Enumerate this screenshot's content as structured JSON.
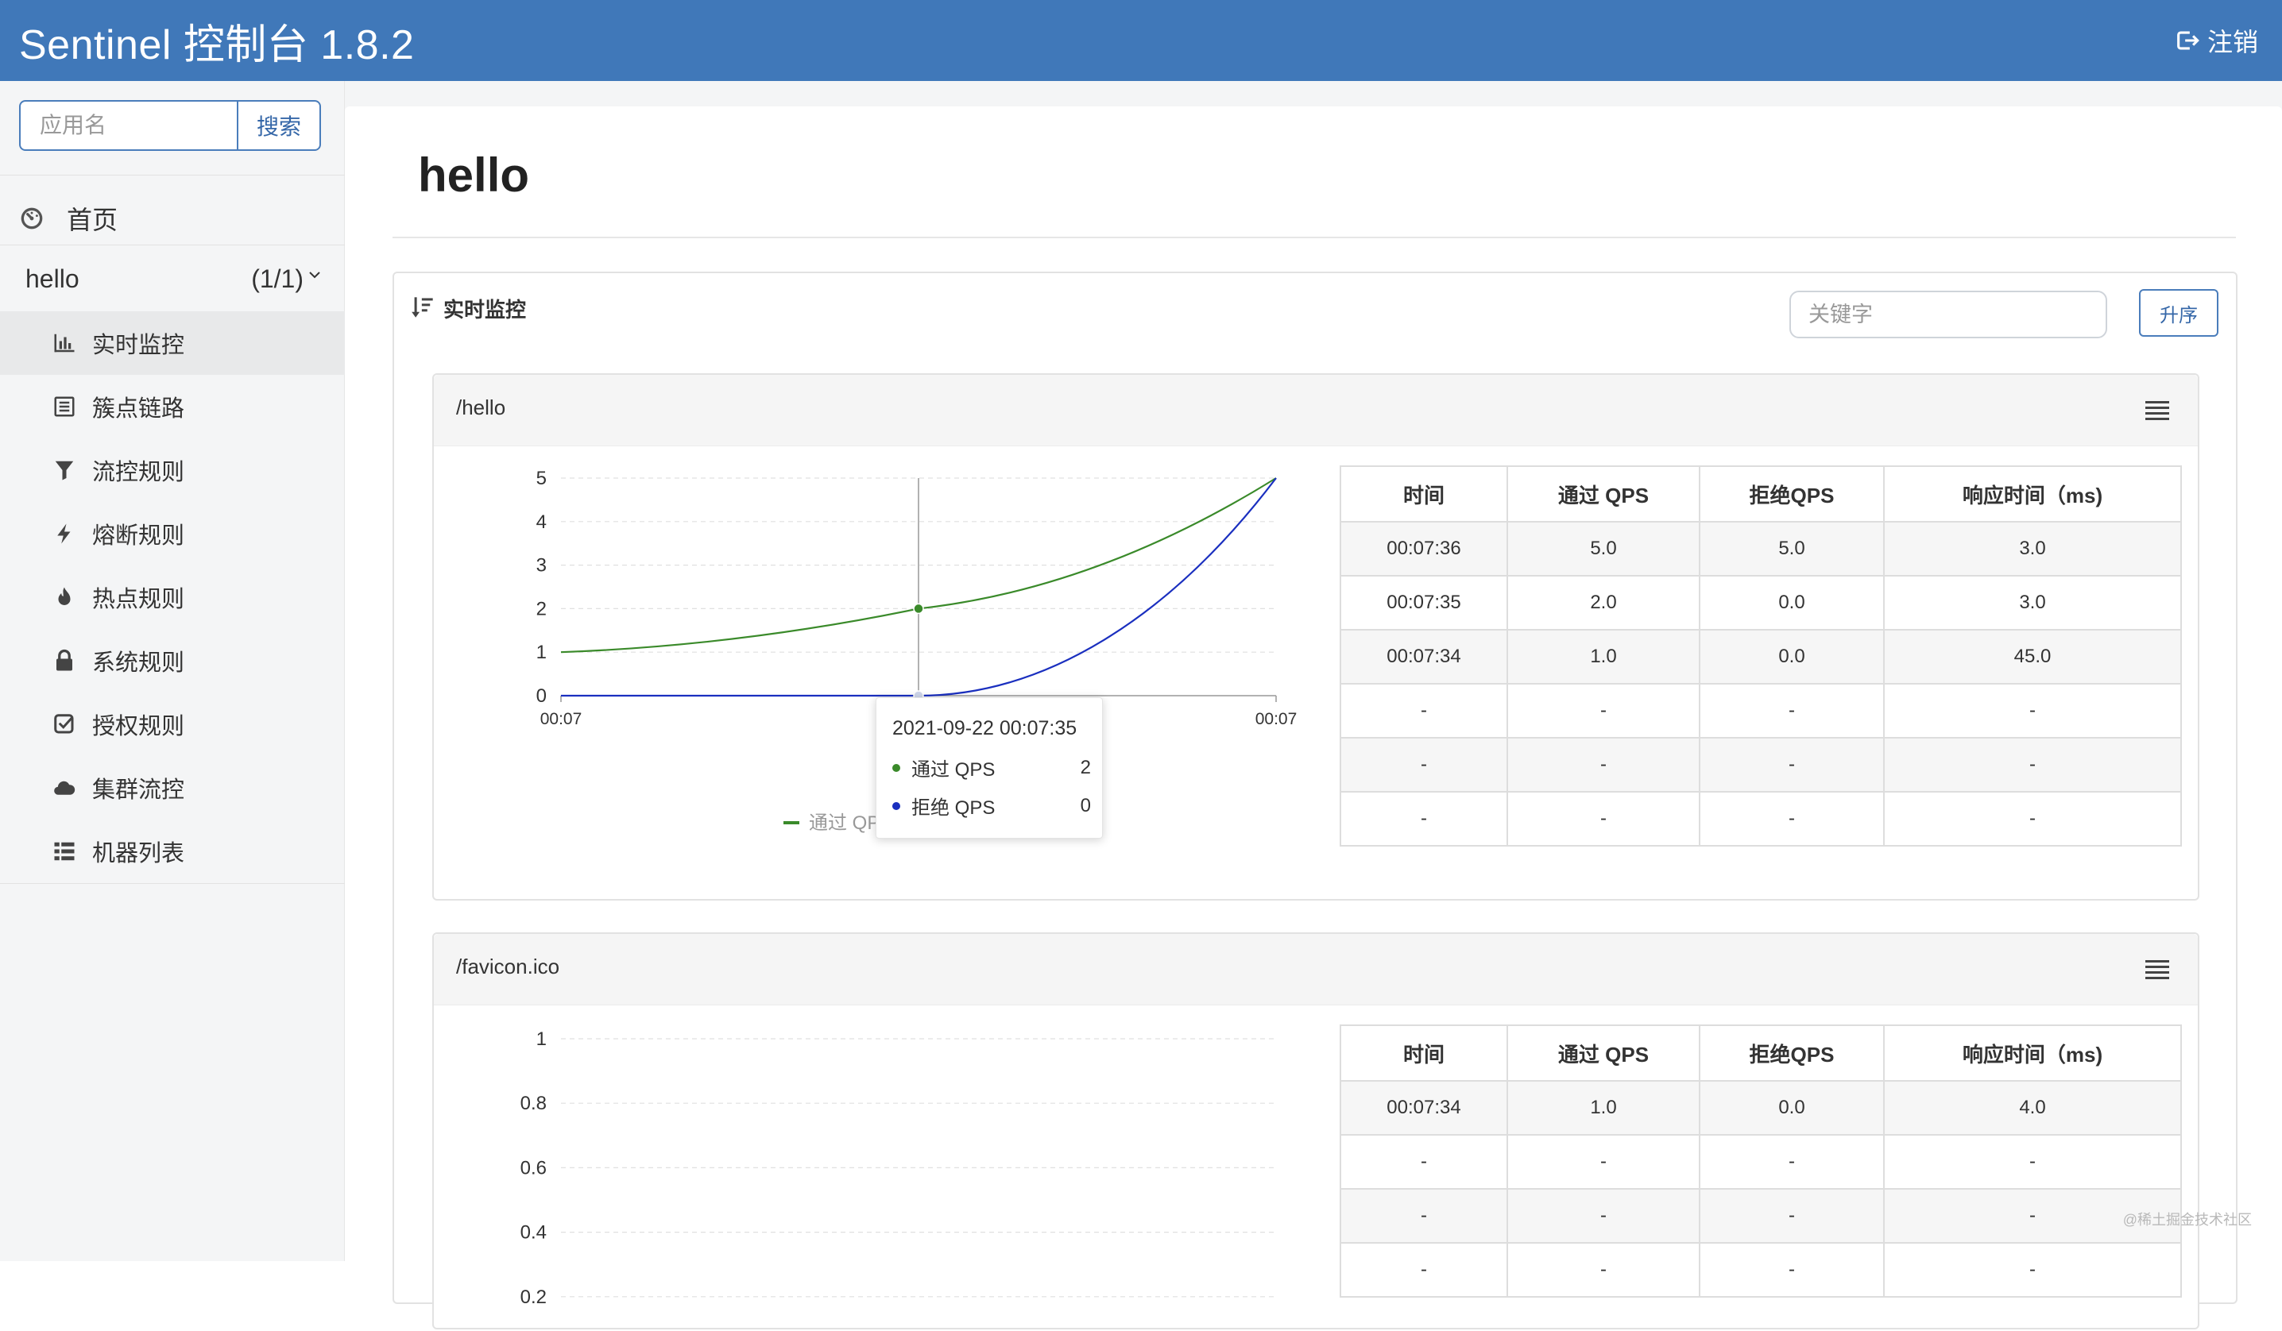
{
  "header": {
    "title": "Sentinel 控制台 1.8.2",
    "logout_label": "注销"
  },
  "sidebar": {
    "search_placeholder": "应用名",
    "search_button": "搜索",
    "home_label": "首页",
    "app": {
      "name": "hello",
      "count": "(1/1)"
    },
    "items": [
      {
        "label": "实时监控",
        "icon": "bar-chart-icon"
      },
      {
        "label": "簇点链路",
        "icon": "list-alt-icon"
      },
      {
        "label": "流控规则",
        "icon": "filter-icon"
      },
      {
        "label": "熔断规则",
        "icon": "flash-icon"
      },
      {
        "label": "热点规则",
        "icon": "fire-icon"
      },
      {
        "label": "系统规则",
        "icon": "lock-icon"
      },
      {
        "label": "授权规则",
        "icon": "check-icon"
      },
      {
        "label": "集群流控",
        "icon": "cloud-icon"
      },
      {
        "label": "机器列表",
        "icon": "th-list-icon"
      }
    ]
  },
  "main": {
    "title": "hello",
    "section_title": "实时监控",
    "keyword_placeholder": "关键字",
    "sort_button": "升序",
    "table_headers": [
      "时间",
      "通过 QPS",
      "拒绝QPS",
      "响应时间（ms)"
    ],
    "resources": [
      {
        "name": "/hello",
        "rows": [
          [
            "00:07:36",
            "5.0",
            "5.0",
            "3.0"
          ],
          [
            "00:07:35",
            "2.0",
            "0.0",
            "3.0"
          ],
          [
            "00:07:34",
            "1.0",
            "0.0",
            "45.0"
          ],
          [
            "-",
            "-",
            "-",
            "-"
          ],
          [
            "-",
            "-",
            "-",
            "-"
          ],
          [
            "-",
            "-",
            "-",
            "-"
          ]
        ],
        "tooltip": {
          "time": "2021-09-22 00:07:35",
          "items": [
            {
              "name": "通过 QPS",
              "value": "2"
            },
            {
              "name": "拒绝 QPS",
              "value": "0"
            }
          ]
        }
      },
      {
        "name": "/favicon.ico",
        "rows": [
          [
            "00:07:34",
            "1.0",
            "0.0",
            "4.0"
          ],
          [
            "-",
            "-",
            "-",
            "-"
          ],
          [
            "-",
            "-",
            "-",
            "-"
          ],
          [
            "-",
            "-",
            "-",
            "-"
          ]
        ]
      }
    ]
  },
  "chart_data": [
    {
      "type": "line",
      "x": [
        "00:07",
        "00:07",
        "00:07"
      ],
      "series": [
        {
          "name": "通过 QPS",
          "values": [
            1,
            2,
            5
          ],
          "color": "#3a8a2a"
        },
        {
          "name": "拒绝 QPS",
          "values": [
            0,
            0,
            5
          ],
          "color": "#1a2fbf"
        }
      ],
      "yticks": [
        "0",
        "1",
        "2",
        "3",
        "4",
        "5"
      ],
      "ylim": [
        0,
        5
      ],
      "legend": "bottom",
      "grid": true
    },
    {
      "type": "line",
      "yticks": [
        "0.2",
        "0.4",
        "0.6",
        "0.8",
        "1"
      ],
      "ylim": [
        0,
        1
      ],
      "grid": true
    }
  ],
  "colors": {
    "header_bg": "#4078b9",
    "accent": "#3567a8",
    "pass": "#3a8a2a",
    "block": "#1a2fbf"
  },
  "watermark": "@稀土掘金技术社区"
}
